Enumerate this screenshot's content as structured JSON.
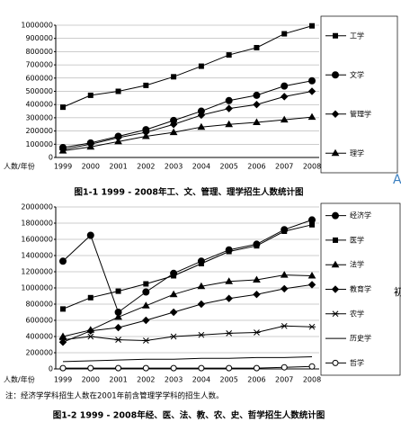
{
  "chart_data": [
    {
      "type": "line",
      "title": "图1-1 1999 - 2008年工、文、管理、理学招生人数统计图",
      "x_label": "人数/年份",
      "categories": [
        "1999",
        "2000",
        "2001",
        "2002",
        "2003",
        "2004",
        "2005",
        "2006",
        "2007",
        "2008"
      ],
      "ylim": [
        0,
        1000000
      ],
      "yticks": [
        0,
        100000,
        200000,
        300000,
        400000,
        500000,
        600000,
        700000,
        800000,
        900000,
        1000000
      ],
      "grid": true,
      "series": [
        {
          "name": "工学",
          "color": "#000000",
          "marker": "square",
          "values": [
            380000,
            470000,
            500000,
            545000,
            610000,
            690000,
            775000,
            830000,
            935000,
            995000
          ]
        },
        {
          "name": "文学",
          "color": "#000000",
          "marker": "circle",
          "values": [
            75000,
            110000,
            160000,
            210000,
            280000,
            350000,
            430000,
            470000,
            540000,
            580000
          ]
        },
        {
          "name": "管理学",
          "color": "#000000",
          "marker": "diamond",
          "values": [
            60000,
            100000,
            150000,
            190000,
            250000,
            320000,
            370000,
            400000,
            460000,
            500000
          ]
        },
        {
          "name": "理学",
          "color": "#000000",
          "marker": "triangle",
          "values": [
            50000,
            80000,
            120000,
            160000,
            190000,
            230000,
            250000,
            265000,
            285000,
            305000
          ]
        }
      ]
    },
    {
      "type": "line",
      "title": "图1-2 1999 - 2008年经、医、法、教、农、史、哲学招生人数统计图",
      "x_label": "人数/年份",
      "note": "注：经济学学科招生人数在2001年前含管理学学科的招生人数。",
      "categories": [
        "1999",
        "2000",
        "2001",
        "2002",
        "2003",
        "2004",
        "2005",
        "2006",
        "2007",
        "2008"
      ],
      "ylim": [
        0,
        2000000
      ],
      "yticks": [
        0,
        200000,
        400000,
        600000,
        800000,
        1000000,
        1200000,
        1400000,
        1600000,
        1800000,
        2000000
      ],
      "grid": true,
      "series": [
        {
          "name": "经济学",
          "color": "#000000",
          "marker": "circle",
          "values": [
            1330000,
            1650000,
            700000,
            950000,
            1180000,
            1330000,
            1470000,
            1540000,
            1720000,
            1840000
          ]
        },
        {
          "name": "医学",
          "color": "#000000",
          "marker": "square",
          "values": [
            740000,
            880000,
            960000,
            1050000,
            1150000,
            1300000,
            1450000,
            1520000,
            1700000,
            1780000
          ]
        },
        {
          "name": "法学",
          "color": "#000000",
          "marker": "triangle",
          "values": [
            400000,
            480000,
            640000,
            780000,
            920000,
            1020000,
            1080000,
            1100000,
            1160000,
            1150000
          ]
        },
        {
          "name": "教育学",
          "color": "#000000",
          "marker": "diamond",
          "values": [
            330000,
            470000,
            510000,
            600000,
            700000,
            800000,
            870000,
            920000,
            990000,
            1040000
          ]
        },
        {
          "name": "农学",
          "color": "#000000",
          "marker": "asterisk",
          "values": [
            360000,
            400000,
            360000,
            350000,
            400000,
            420000,
            440000,
            450000,
            530000,
            520000
          ]
        },
        {
          "name": "历史学",
          "color": "#000000",
          "marker": "none",
          "values": [
            90000,
            100000,
            110000,
            120000,
            120000,
            130000,
            130000,
            140000,
            140000,
            150000
          ]
        },
        {
          "name": "哲学",
          "color": "#000000",
          "marker": "open-circle",
          "values": [
            10000,
            10000,
            10000,
            10000,
            10000,
            10000,
            10000,
            10000,
            20000,
            30000
          ]
        }
      ]
    }
  ],
  "side_marks": [
    "A",
    "初"
  ]
}
